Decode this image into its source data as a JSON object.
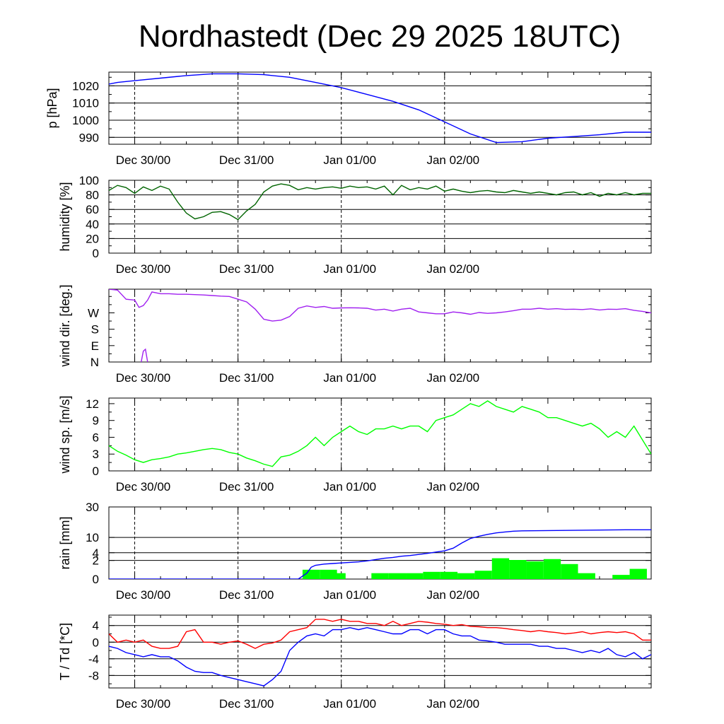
{
  "title": "Nordhastedt (Dec 29 2025 18UTC)",
  "x_labels": [
    "Dec 30/00",
    "Dec 31/00",
    "Jan 01/00",
    "Jan 02/00"
  ],
  "colors": {
    "pressure": "#0000ff",
    "humidity": "#006400",
    "wind_dir": "#a020f0",
    "wind_speed": "#00ff00",
    "rain_cum": "#0000ff",
    "rain_bar": "#00ff00",
    "temperature": "#ff0000",
    "dewpoint": "#0000ff"
  },
  "chart_data": [
    {
      "type": "line",
      "ylabel": "p [hPa]",
      "ylim": [
        986,
        1028
      ],
      "yticks": [
        990,
        1000,
        1010,
        1020
      ],
      "ytick_labels": [
        "990",
        "1000",
        "1010",
        "1020"
      ],
      "hgrid": [
        990,
        1000,
        1010,
        1020
      ],
      "x_hours": [
        0,
        2,
        6,
        12,
        18,
        24,
        30,
        36,
        42,
        48,
        54,
        60,
        66,
        72,
        78,
        84,
        90,
        96,
        102,
        108,
        114,
        120,
        126
      ],
      "series": [
        {
          "name": "pressure",
          "color_key": "pressure",
          "values": [
            1021,
            1022,
            1023,
            1024.5,
            1026,
            1027,
            1027,
            1026.5,
            1025,
            1022,
            1019,
            1015,
            1011,
            1006,
            999,
            992,
            987,
            987.5,
            989.5,
            990.5,
            991.5,
            993,
            993
          ]
        }
      ]
    },
    {
      "type": "line",
      "ylabel": "humidity [%]",
      "ylim": [
        0,
        100
      ],
      "yticks": [
        0,
        20,
        40,
        60,
        80,
        100
      ],
      "ytick_labels": [
        "0",
        "20",
        "40",
        "60",
        "80",
        "100"
      ],
      "hgrid": [
        20,
        40,
        60,
        80
      ],
      "x_hours": [
        0,
        2,
        4,
        6,
        8,
        10,
        12,
        14,
        16,
        18,
        20,
        22,
        24,
        26,
        28,
        30,
        32,
        34,
        36,
        38,
        40,
        42,
        44,
        46,
        48,
        50,
        52,
        54,
        56,
        58,
        60,
        62,
        64,
        66,
        68,
        70,
        72,
        74,
        76,
        78,
        80,
        82,
        84,
        86,
        88,
        90,
        92,
        94,
        96,
        98,
        100,
        102,
        104,
        106,
        108,
        110,
        112,
        114,
        116,
        118,
        120,
        122,
        124,
        126
      ],
      "series": [
        {
          "name": "humidity",
          "color_key": "humidity",
          "values": [
            86,
            93,
            90,
            82,
            91,
            86,
            92,
            88,
            70,
            55,
            47,
            50,
            56,
            57,
            53,
            46,
            58,
            67,
            84,
            92,
            95,
            93,
            87,
            90,
            88,
            90,
            91,
            89,
            92,
            90,
            91,
            88,
            92,
            80,
            93,
            87,
            90,
            88,
            92,
            85,
            88,
            85,
            83,
            85,
            86,
            84,
            83,
            86,
            84,
            82,
            84,
            82,
            80,
            83,
            84,
            80,
            83,
            78,
            82,
            80,
            83,
            80,
            82,
            82
          ]
        }
      ]
    },
    {
      "type": "line",
      "ylabel": "wind dir. [deg.]",
      "ylim": [
        0,
        400
      ],
      "yticks": [
        0,
        90,
        180,
        270
      ],
      "ytick_labels": [
        "N",
        "E",
        "S",
        "W"
      ],
      "hgrid": [],
      "x_hours": [
        0,
        2,
        4,
        6,
        7,
        8,
        9,
        10,
        12,
        14,
        16,
        18,
        20,
        22,
        24,
        26,
        28,
        30,
        32,
        34,
        36,
        38,
        40,
        42,
        44,
        46,
        48,
        50,
        52,
        54,
        56,
        58,
        60,
        62,
        64,
        66,
        68,
        70,
        72,
        74,
        76,
        78,
        80,
        82,
        84,
        86,
        88,
        90,
        92,
        94,
        96,
        98,
        100,
        102,
        104,
        106,
        108,
        110,
        112,
        114,
        116,
        118,
        120,
        122,
        124,
        126
      ],
      "series": [
        {
          "name": "wind_direction",
          "color_key": "wind_dir",
          "values": [
            400,
            395,
            345,
            340,
            300,
            310,
            340,
            385,
            375,
            375,
            372,
            372,
            370,
            368,
            365,
            362,
            360,
            345,
            330,
            290,
            235,
            225,
            230,
            250,
            295,
            308,
            300,
            305,
            295,
            297,
            298,
            297,
            295,
            285,
            290,
            280,
            290,
            295,
            275,
            270,
            265,
            265,
            275,
            270,
            262,
            272,
            267,
            270,
            275,
            282,
            290,
            290,
            295,
            290,
            293,
            289,
            290,
            288,
            292,
            286,
            290,
            289,
            293,
            284,
            278,
            270
          ]
        }
      ]
    },
    {
      "type": "line",
      "ylabel": "wind sp. [m/s]",
      "ylim": [
        0,
        13
      ],
      "yticks": [
        0,
        3,
        6,
        9,
        12
      ],
      "ytick_labels": [
        "0",
        "3",
        "6",
        "9",
        "12"
      ],
      "hgrid": [],
      "x_hours": [
        0,
        2,
        4,
        6,
        8,
        10,
        12,
        14,
        16,
        18,
        20,
        22,
        24,
        26,
        28,
        30,
        32,
        34,
        36,
        38,
        40,
        42,
        44,
        46,
        48,
        50,
        52,
        54,
        56,
        58,
        60,
        62,
        64,
        66,
        68,
        70,
        72,
        74,
        76,
        78,
        80,
        82,
        84,
        86,
        88,
        90,
        92,
        94,
        96,
        98,
        100,
        102,
        104,
        106,
        108,
        110,
        112,
        114,
        116,
        118,
        120,
        122,
        124,
        126
      ],
      "series": [
        {
          "name": "wind_speed",
          "color_key": "wind_speed",
          "values": [
            4.5,
            3.5,
            2.8,
            2,
            1.5,
            2,
            2.2,
            2.5,
            3,
            3.2,
            3.5,
            3.8,
            4,
            3.8,
            3.3,
            3,
            2.3,
            1.8,
            1.2,
            0.8,
            2.5,
            2.8,
            3.5,
            4.5,
            6,
            4.5,
            6,
            7,
            8,
            7,
            6.5,
            7.5,
            7.5,
            8,
            7.5,
            8,
            8,
            7,
            9,
            9.5,
            10,
            11,
            12,
            11.5,
            12.5,
            11.5,
            11,
            10.5,
            11.5,
            11,
            10.5,
            9.5,
            9.5,
            9,
            8.5,
            8,
            8.5,
            7.5,
            6,
            7,
            6,
            8,
            5.5,
            3
          ]
        }
      ]
    },
    {
      "type": "bar+line",
      "ylabel": "rain [mm]",
      "yscale": "sqrt",
      "ylim": [
        0,
        30
      ],
      "yticks": [
        0,
        2,
        4,
        10,
        30
      ],
      "ytick_labels": [
        "0",
        "2",
        "4",
        "10",
        "30"
      ],
      "hgrid": [
        2,
        4,
        10
      ],
      "bar_hours": [
        45,
        49,
        51,
        57,
        61,
        65,
        69,
        73,
        77,
        81,
        85,
        89,
        93,
        97,
        101,
        105,
        109,
        113,
        117,
        121
      ],
      "bar_width_hours": 4,
      "bars": [
        {
          "name": "rain per interval",
          "color_key": "rain_bar",
          "values": [
            0.5,
            0.5,
            0.2,
            0,
            0.2,
            0.2,
            0.2,
            0.3,
            0.3,
            0.2,
            0.4,
            2.5,
            2.1,
            1.8,
            2.3,
            1.3,
            0.2,
            0,
            0.1,
            0.6
          ]
        }
      ],
      "x_hours": [
        0,
        20,
        40,
        44,
        46,
        47,
        48,
        50,
        52,
        54,
        56,
        58,
        60,
        62,
        64,
        66,
        68,
        70,
        72,
        74,
        76,
        78,
        80,
        82,
        84,
        86,
        88,
        90,
        92,
        94,
        96,
        100,
        104,
        108,
        112,
        116,
        120,
        126
      ],
      "series": [
        {
          "name": "accumulated rain",
          "color_key": "rain_cum",
          "values": [
            0,
            0,
            0,
            0,
            0.2,
            0.8,
            1.1,
            1.3,
            1.4,
            1.5,
            1.6,
            1.7,
            1.9,
            2.2,
            2.5,
            2.7,
            3,
            3.2,
            3.5,
            3.8,
            4.2,
            4.6,
            5.5,
            7.5,
            9.5,
            10.6,
            11.5,
            12.3,
            12.8,
            13.2,
            13.4,
            13.5,
            13.6,
            13.7,
            13.8,
            13.9,
            14,
            14
          ]
        }
      ]
    },
    {
      "type": "line",
      "ylabel": "T / Td [*C]",
      "ylim": [
        -11,
        6.5
      ],
      "yticks": [
        -8,
        -4,
        0,
        4
      ],
      "ytick_labels": [
        "-8",
        "-4",
        "0",
        "4"
      ],
      "hgrid": [
        -8,
        -4,
        0,
        4
      ],
      "x_hours": [
        0,
        2,
        4,
        6,
        8,
        10,
        12,
        14,
        16,
        18,
        20,
        22,
        24,
        26,
        28,
        30,
        32,
        34,
        36,
        38,
        40,
        42,
        44,
        46,
        48,
        50,
        52,
        54,
        56,
        58,
        60,
        62,
        64,
        66,
        68,
        70,
        72,
        74,
        76,
        78,
        80,
        82,
        84,
        86,
        88,
        90,
        92,
        94,
        96,
        98,
        100,
        102,
        104,
        106,
        108,
        110,
        112,
        114,
        116,
        118,
        120,
        122,
        124,
        126
      ],
      "series": [
        {
          "name": "T",
          "color_key": "temperature",
          "values": [
            2,
            0,
            0.5,
            0,
            0.5,
            -1,
            -1.5,
            -1.5,
            -1,
            2.5,
            3,
            0,
            0,
            -0.5,
            0,
            0.3,
            -0.5,
            -1.5,
            -0.5,
            -0.2,
            0.5,
            2.5,
            3,
            3.5,
            5.5,
            5.5,
            5,
            5.5,
            5,
            5,
            4.5,
            4.5,
            4,
            5,
            4,
            4.5,
            5,
            4.8,
            4.5,
            4.3,
            4,
            4.2,
            3.8,
            3.7,
            3.5,
            3.5,
            3.3,
            3,
            2.8,
            2.5,
            2.8,
            2.5,
            2.3,
            2,
            2.2,
            2.5,
            2,
            2.3,
            2.5,
            2.3,
            2.5,
            2,
            0.5,
            0.5
          ]
        }
      ]
    },
    {
      "type": "line",
      "series_ref": "T / Td [*C]",
      "x_hours": [
        0,
        2,
        4,
        6,
        8,
        10,
        12,
        14,
        16,
        18,
        20,
        22,
        24,
        26,
        28,
        30,
        32,
        34,
        36,
        38,
        40,
        42,
        44,
        46,
        48,
        50,
        52,
        54,
        56,
        58,
        60,
        62,
        64,
        66,
        68,
        70,
        72,
        74,
        76,
        78,
        80,
        82,
        84,
        86,
        88,
        90,
        92,
        94,
        96,
        98,
        100,
        102,
        104,
        106,
        108,
        110,
        112,
        114,
        116,
        118,
        120,
        122,
        124,
        126
      ],
      "series": [
        {
          "name": "Td",
          "color_key": "dewpoint",
          "values": [
            -1,
            -1.5,
            -2.5,
            -3,
            -3.5,
            -3,
            -3.5,
            -3.5,
            -4.5,
            -6,
            -7,
            -7.3,
            -7.3,
            -8,
            -8.5,
            -9,
            -9.5,
            -10,
            -10.5,
            -9,
            -7,
            -2,
            0,
            1.5,
            2,
            1.5,
            3,
            3,
            3.5,
            3,
            3.5,
            3,
            2.5,
            2,
            2,
            3,
            3,
            2,
            3,
            3,
            2,
            1.5,
            1.5,
            0.5,
            0.3,
            0,
            -0.5,
            -0.5,
            -0.5,
            -0.5,
            -1,
            -1,
            -1.5,
            -1.5,
            -2,
            -2.5,
            -2,
            -2.5,
            -1.5,
            -3,
            -3.5,
            -2.5,
            -4,
            -3
          ]
        }
      ]
    }
  ]
}
